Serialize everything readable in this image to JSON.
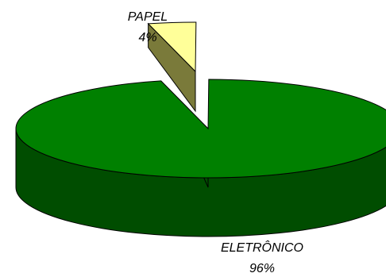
{
  "chart_data": {
    "type": "pie",
    "style": "3d-exploded",
    "slices": [
      {
        "name": "ELETRÔNICO",
        "percent_label": "96%",
        "value": 96,
        "colors": {
          "top": "#008000",
          "side": "#004D00"
        }
      },
      {
        "name": "PAPEL",
        "percent_label": "4%",
        "value": 4,
        "colors": {
          "top": "#FFFF99",
          "side": "#7A7A3A"
        }
      }
    ],
    "title": "",
    "legend": "none"
  }
}
